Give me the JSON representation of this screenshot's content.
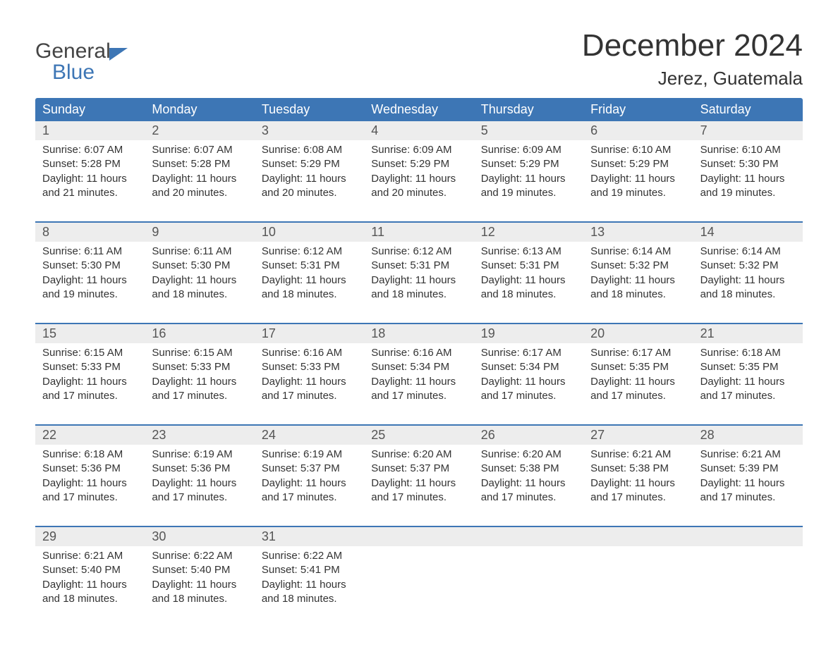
{
  "logo": {
    "line1": "General",
    "line2": "Blue",
    "text_color_top": "#444444",
    "text_color_bottom": "#3d76b5",
    "icon_color": "#3d76b5"
  },
  "title": {
    "month": "December 2024",
    "location": "Jerez, Guatemala",
    "month_fontsize": 44,
    "location_fontsize": 26,
    "text_color": "#333333"
  },
  "styling": {
    "header_bg": "#3d76b5",
    "header_text": "#ffffff",
    "daynum_bg": "#ededed",
    "daynum_text": "#555555",
    "body_text": "#333333",
    "rule_color": "#3d76b5",
    "page_bg": "#ffffff",
    "body_fontsize": 15,
    "header_fontsize": 18,
    "daynum_fontsize": 18
  },
  "weekday_labels": [
    "Sunday",
    "Monday",
    "Tuesday",
    "Wednesday",
    "Thursday",
    "Friday",
    "Saturday"
  ],
  "weeks": [
    {
      "days": [
        {
          "num": "1",
          "sunrise": "Sunrise: 6:07 AM",
          "sunset": "Sunset: 5:28 PM",
          "daylight1": "Daylight: 11 hours",
          "daylight2": "and 21 minutes."
        },
        {
          "num": "2",
          "sunrise": "Sunrise: 6:07 AM",
          "sunset": "Sunset: 5:28 PM",
          "daylight1": "Daylight: 11 hours",
          "daylight2": "and 20 minutes."
        },
        {
          "num": "3",
          "sunrise": "Sunrise: 6:08 AM",
          "sunset": "Sunset: 5:29 PM",
          "daylight1": "Daylight: 11 hours",
          "daylight2": "and 20 minutes."
        },
        {
          "num": "4",
          "sunrise": "Sunrise: 6:09 AM",
          "sunset": "Sunset: 5:29 PM",
          "daylight1": "Daylight: 11 hours",
          "daylight2": "and 20 minutes."
        },
        {
          "num": "5",
          "sunrise": "Sunrise: 6:09 AM",
          "sunset": "Sunset: 5:29 PM",
          "daylight1": "Daylight: 11 hours",
          "daylight2": "and 19 minutes."
        },
        {
          "num": "6",
          "sunrise": "Sunrise: 6:10 AM",
          "sunset": "Sunset: 5:29 PM",
          "daylight1": "Daylight: 11 hours",
          "daylight2": "and 19 minutes."
        },
        {
          "num": "7",
          "sunrise": "Sunrise: 6:10 AM",
          "sunset": "Sunset: 5:30 PM",
          "daylight1": "Daylight: 11 hours",
          "daylight2": "and 19 minutes."
        }
      ]
    },
    {
      "days": [
        {
          "num": "8",
          "sunrise": "Sunrise: 6:11 AM",
          "sunset": "Sunset: 5:30 PM",
          "daylight1": "Daylight: 11 hours",
          "daylight2": "and 19 minutes."
        },
        {
          "num": "9",
          "sunrise": "Sunrise: 6:11 AM",
          "sunset": "Sunset: 5:30 PM",
          "daylight1": "Daylight: 11 hours",
          "daylight2": "and 18 minutes."
        },
        {
          "num": "10",
          "sunrise": "Sunrise: 6:12 AM",
          "sunset": "Sunset: 5:31 PM",
          "daylight1": "Daylight: 11 hours",
          "daylight2": "and 18 minutes."
        },
        {
          "num": "11",
          "sunrise": "Sunrise: 6:12 AM",
          "sunset": "Sunset: 5:31 PM",
          "daylight1": "Daylight: 11 hours",
          "daylight2": "and 18 minutes."
        },
        {
          "num": "12",
          "sunrise": "Sunrise: 6:13 AM",
          "sunset": "Sunset: 5:31 PM",
          "daylight1": "Daylight: 11 hours",
          "daylight2": "and 18 minutes."
        },
        {
          "num": "13",
          "sunrise": "Sunrise: 6:14 AM",
          "sunset": "Sunset: 5:32 PM",
          "daylight1": "Daylight: 11 hours",
          "daylight2": "and 18 minutes."
        },
        {
          "num": "14",
          "sunrise": "Sunrise: 6:14 AM",
          "sunset": "Sunset: 5:32 PM",
          "daylight1": "Daylight: 11 hours",
          "daylight2": "and 18 minutes."
        }
      ]
    },
    {
      "days": [
        {
          "num": "15",
          "sunrise": "Sunrise: 6:15 AM",
          "sunset": "Sunset: 5:33 PM",
          "daylight1": "Daylight: 11 hours",
          "daylight2": "and 17 minutes."
        },
        {
          "num": "16",
          "sunrise": "Sunrise: 6:15 AM",
          "sunset": "Sunset: 5:33 PM",
          "daylight1": "Daylight: 11 hours",
          "daylight2": "and 17 minutes."
        },
        {
          "num": "17",
          "sunrise": "Sunrise: 6:16 AM",
          "sunset": "Sunset: 5:33 PM",
          "daylight1": "Daylight: 11 hours",
          "daylight2": "and 17 minutes."
        },
        {
          "num": "18",
          "sunrise": "Sunrise: 6:16 AM",
          "sunset": "Sunset: 5:34 PM",
          "daylight1": "Daylight: 11 hours",
          "daylight2": "and 17 minutes."
        },
        {
          "num": "19",
          "sunrise": "Sunrise: 6:17 AM",
          "sunset": "Sunset: 5:34 PM",
          "daylight1": "Daylight: 11 hours",
          "daylight2": "and 17 minutes."
        },
        {
          "num": "20",
          "sunrise": "Sunrise: 6:17 AM",
          "sunset": "Sunset: 5:35 PM",
          "daylight1": "Daylight: 11 hours",
          "daylight2": "and 17 minutes."
        },
        {
          "num": "21",
          "sunrise": "Sunrise: 6:18 AM",
          "sunset": "Sunset: 5:35 PM",
          "daylight1": "Daylight: 11 hours",
          "daylight2": "and 17 minutes."
        }
      ]
    },
    {
      "days": [
        {
          "num": "22",
          "sunrise": "Sunrise: 6:18 AM",
          "sunset": "Sunset: 5:36 PM",
          "daylight1": "Daylight: 11 hours",
          "daylight2": "and 17 minutes."
        },
        {
          "num": "23",
          "sunrise": "Sunrise: 6:19 AM",
          "sunset": "Sunset: 5:36 PM",
          "daylight1": "Daylight: 11 hours",
          "daylight2": "and 17 minutes."
        },
        {
          "num": "24",
          "sunrise": "Sunrise: 6:19 AM",
          "sunset": "Sunset: 5:37 PM",
          "daylight1": "Daylight: 11 hours",
          "daylight2": "and 17 minutes."
        },
        {
          "num": "25",
          "sunrise": "Sunrise: 6:20 AM",
          "sunset": "Sunset: 5:37 PM",
          "daylight1": "Daylight: 11 hours",
          "daylight2": "and 17 minutes."
        },
        {
          "num": "26",
          "sunrise": "Sunrise: 6:20 AM",
          "sunset": "Sunset: 5:38 PM",
          "daylight1": "Daylight: 11 hours",
          "daylight2": "and 17 minutes."
        },
        {
          "num": "27",
          "sunrise": "Sunrise: 6:21 AM",
          "sunset": "Sunset: 5:38 PM",
          "daylight1": "Daylight: 11 hours",
          "daylight2": "and 17 minutes."
        },
        {
          "num": "28",
          "sunrise": "Sunrise: 6:21 AM",
          "sunset": "Sunset: 5:39 PM",
          "daylight1": "Daylight: 11 hours",
          "daylight2": "and 17 minutes."
        }
      ]
    },
    {
      "days": [
        {
          "num": "29",
          "sunrise": "Sunrise: 6:21 AM",
          "sunset": "Sunset: 5:40 PM",
          "daylight1": "Daylight: 11 hours",
          "daylight2": "and 18 minutes."
        },
        {
          "num": "30",
          "sunrise": "Sunrise: 6:22 AM",
          "sunset": "Sunset: 5:40 PM",
          "daylight1": "Daylight: 11 hours",
          "daylight2": "and 18 minutes."
        },
        {
          "num": "31",
          "sunrise": "Sunrise: 6:22 AM",
          "sunset": "Sunset: 5:41 PM",
          "daylight1": "Daylight: 11 hours",
          "daylight2": "and 18 minutes."
        },
        {
          "num": "",
          "sunrise": "",
          "sunset": "",
          "daylight1": "",
          "daylight2": ""
        },
        {
          "num": "",
          "sunrise": "",
          "sunset": "",
          "daylight1": "",
          "daylight2": ""
        },
        {
          "num": "",
          "sunrise": "",
          "sunset": "",
          "daylight1": "",
          "daylight2": ""
        },
        {
          "num": "",
          "sunrise": "",
          "sunset": "",
          "daylight1": "",
          "daylight2": ""
        }
      ]
    }
  ]
}
